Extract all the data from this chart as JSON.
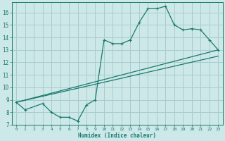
{
  "xlabel": "Humidex (Indice chaleur)",
  "bg_color": "#cce8e8",
  "grid_color": "#aacccc",
  "line_color": "#1a7a6e",
  "xlim": [
    -0.5,
    23.5
  ],
  "ylim": [
    7,
    16.8
  ],
  "xticks": [
    0,
    1,
    2,
    3,
    4,
    5,
    6,
    7,
    8,
    9,
    10,
    11,
    12,
    13,
    14,
    15,
    16,
    17,
    18,
    19,
    20,
    21,
    22,
    23
  ],
  "yticks": [
    7,
    8,
    9,
    10,
    11,
    12,
    13,
    14,
    15,
    16
  ],
  "curve1_x": [
    0,
    1,
    3,
    4,
    5,
    6,
    7,
    8,
    9,
    10,
    11,
    12,
    13,
    14,
    15,
    16,
    17,
    18,
    19,
    20,
    21,
    22,
    23
  ],
  "curve1_y": [
    8.8,
    8.2,
    8.7,
    8.0,
    7.6,
    7.6,
    7.3,
    8.6,
    9.0,
    13.8,
    13.5,
    13.5,
    13.8,
    15.2,
    16.3,
    16.3,
    16.5,
    15.0,
    14.6,
    14.7,
    14.6,
    13.8,
    13.0
  ],
  "line1_x": [
    0,
    23
  ],
  "line1_y": [
    8.8,
    13.0
  ],
  "line2_x": [
    0,
    23
  ],
  "line2_y": [
    8.8,
    12.5
  ]
}
